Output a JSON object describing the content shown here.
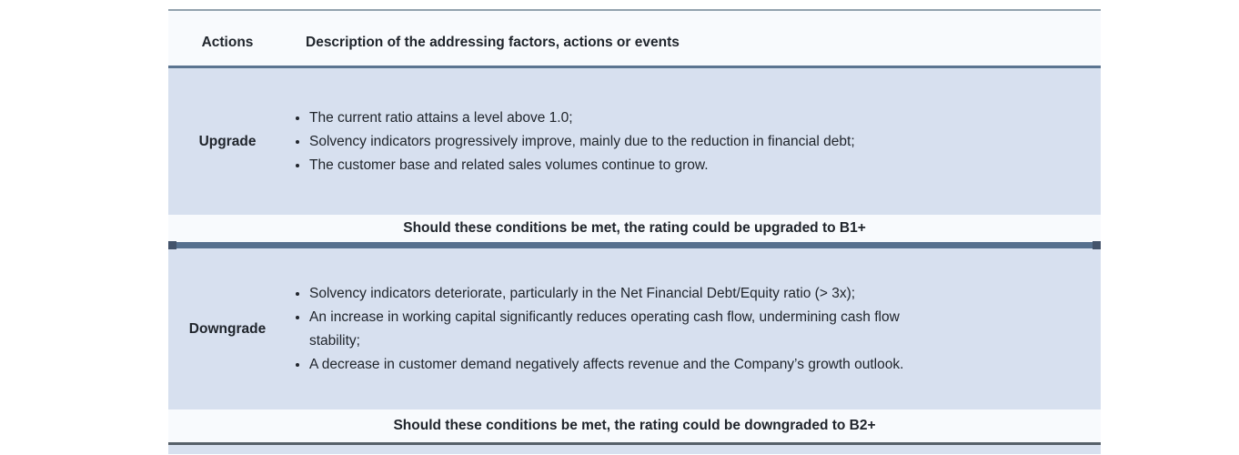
{
  "table": {
    "header": {
      "actions_label": "Actions",
      "description_label": "Description of the addressing factors, actions or events"
    },
    "sections": [
      {
        "action": "Upgrade",
        "bullets": [
          "The current ratio attains a level above 1.0;",
          "Solvency indicators progressively improve, mainly due to the reduction in financial debt;",
          "The customer base and related sales volumes continue to grow."
        ],
        "note": "Should these conditions be met, the rating could be upgraded to B1+"
      },
      {
        "action": "Downgrade",
        "bullets": [
          "Solvency indicators deteriorate, particularly in the Net Financial Debt/Equity ratio (> 3x);",
          "An increase in working capital significantly reduces operating cash flow, undermining cash flow\nstability;",
          "A decrease in customer demand negatively affects revenue and the Company’s growth outlook."
        ],
        "note": "Should these conditions be met, the rating could be downgraded to B2+"
      }
    ]
  },
  "colors": {
    "row_fill_blue": "#d7e0ef",
    "row_fill_light": "#f8fafd",
    "divider_slate": "#56708e",
    "divider_cap": "#43536b",
    "top_border": "#93a2ae",
    "header_border": "#5b7490",
    "bottom_border": "#566069",
    "text": "#20252c"
  }
}
